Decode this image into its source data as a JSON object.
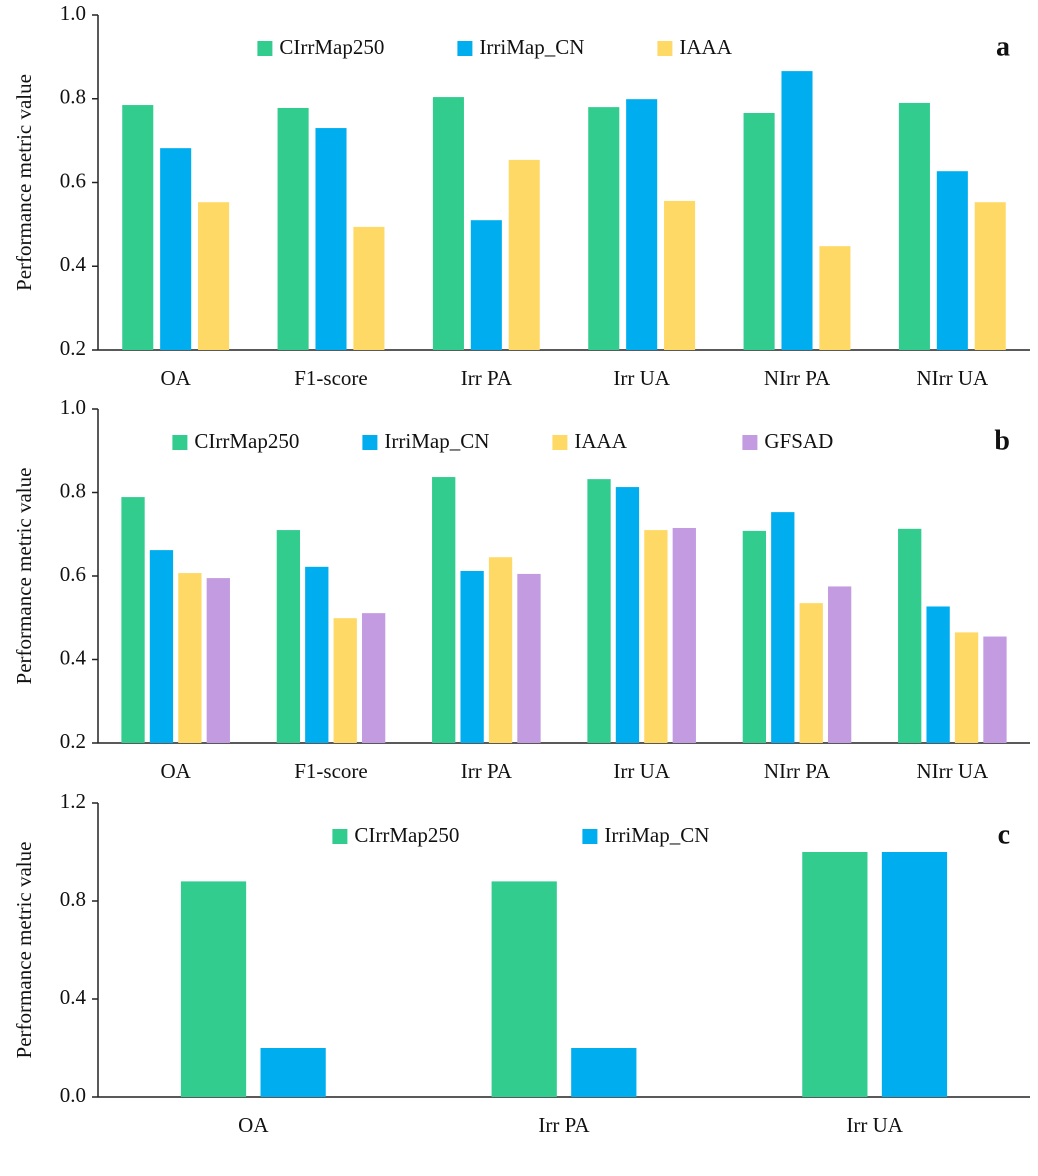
{
  "chart_data": [
    {
      "type": "bar",
      "panel_label": "a",
      "ylabel": "Performance metric value",
      "categories": [
        "OA",
        "F1-score",
        "Irr PA",
        "Irr UA",
        "NIrr PA",
        "NIrr UA"
      ],
      "series": [
        {
          "name": "CIrrMap250",
          "color": "#33cc8f",
          "values": [
            0.785,
            0.778,
            0.804,
            0.78,
            0.766,
            0.79
          ]
        },
        {
          "name": "IrriMap_CN",
          "color": "#00aeef",
          "values": [
            0.682,
            0.73,
            0.51,
            0.799,
            0.866,
            0.627
          ]
        },
        {
          "name": "IAAA",
          "color": "#ffd966",
          "values": [
            0.553,
            0.494,
            0.654,
            0.556,
            0.448,
            0.553
          ]
        }
      ],
      "ylim": [
        0.2,
        {
          "value": 1,
          "label": "1.0"
        }
      ],
      "yticks": [
        0.2,
        0.4,
        0.6,
        0.8,
        {
          "value": 1,
          "label": "1.0"
        }
      ]
    },
    {
      "type": "bar",
      "panel_label": "b",
      "ylabel": "Performance metric value",
      "categories": [
        "OA",
        "F1-score",
        "Irr PA",
        "Irr UA",
        "NIrr PA",
        "NIrr UA"
      ],
      "series": [
        {
          "name": "CIrrMap250",
          "color": "#33cc8f",
          "values": [
            0.789,
            0.71,
            0.837,
            0.832,
            0.708,
            0.713
          ]
        },
        {
          "name": "IrriMap_CN",
          "color": "#00aeef",
          "values": [
            0.662,
            0.622,
            0.612,
            0.813,
            0.753,
            0.527
          ]
        },
        {
          "name": "IAAA",
          "color": "#ffd966",
          "values": [
            0.607,
            0.499,
            0.645,
            0.71,
            0.535,
            0.465
          ]
        },
        {
          "name": "GFSAD",
          "color": "#c39be0",
          "values": [
            0.595,
            0.511,
            0.605,
            0.715,
            0.575,
            0.455
          ]
        }
      ],
      "ylim": [
        0.2,
        {
          "value": 1,
          "label": "1.0"
        }
      ],
      "yticks": [
        0.2,
        0.4,
        0.6,
        0.8,
        {
          "value": 1,
          "label": "1.0"
        }
      ]
    },
    {
      "type": "bar",
      "panel_label": "c",
      "ylabel": "Performance metric value",
      "categories": [
        "OA",
        "Irr PA",
        "Irr UA"
      ],
      "series": [
        {
          "name": "CIrrMap250",
          "color": "#33cc8f",
          "values": [
            0.88,
            0.88,
            1.0
          ]
        },
        {
          "name": "IrriMap_CN",
          "color": "#00aeef",
          "values": [
            0.2,
            0.2,
            1.0
          ]
        }
      ],
      "ylim": [
        {
          "value": 0,
          "label": "0.0"
        },
        1.2
      ],
      "yticks": [
        {
          "value": 0,
          "label": "0.0"
        },
        0.4,
        0.8,
        1.2
      ]
    }
  ]
}
